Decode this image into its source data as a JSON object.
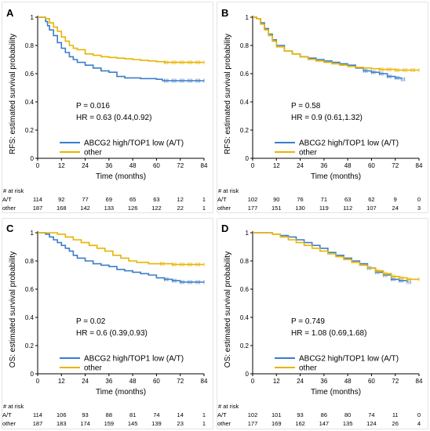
{
  "colors": {
    "blue": "#3a7dc9",
    "gold": "#e8b400",
    "axis": "#000000",
    "frame": "#e3e3e3"
  },
  "legend_labels": [
    "ABCG2 high/TOP1 low (A/T)",
    "other"
  ],
  "risk_header": "# at risk",
  "risk_row_labels": [
    "A/T",
    "other"
  ],
  "chart_data": [
    {
      "panel": "A",
      "type": "line",
      "xlabel": "Time (months)",
      "ylabel": "RFS: estimated survival probability",
      "xlim": [
        0,
        84
      ],
      "ylim": [
        0,
        1
      ],
      "xticks": [
        0,
        12,
        24,
        36,
        48,
        60,
        72,
        84
      ],
      "yticks": [
        0,
        0.2,
        0.4,
        0.6,
        0.8,
        1
      ],
      "ytick_labels": [
        "0",
        "0.2",
        "0.4",
        "0.6",
        "0.8",
        "1"
      ],
      "p_text": "P = 0.016",
      "hr_text": "HR = 0.63  (0.44,0.92)",
      "series": [
        {
          "name": "ABCG2 high/TOP1 low (A/T)",
          "color": "#3a7dc9",
          "x": [
            0,
            2,
            4,
            5,
            6,
            8,
            10,
            12,
            14,
            16,
            18,
            20,
            24,
            28,
            32,
            36,
            40,
            44,
            48,
            52,
            56,
            60,
            63,
            64,
            68,
            72,
            76,
            80,
            84
          ],
          "y": [
            1.0,
            1.0,
            0.97,
            0.94,
            0.91,
            0.87,
            0.82,
            0.78,
            0.75,
            0.72,
            0.7,
            0.68,
            0.66,
            0.64,
            0.62,
            0.61,
            0.58,
            0.57,
            0.57,
            0.565,
            0.565,
            0.56,
            0.55,
            0.55,
            0.55,
            0.55,
            0.55,
            0.55,
            0.55
          ]
        },
        {
          "name": "other",
          "color": "#e8b400",
          "x": [
            0,
            2,
            4,
            6,
            8,
            10,
            12,
            14,
            16,
            18,
            20,
            24,
            28,
            32,
            36,
            40,
            44,
            48,
            52,
            56,
            60,
            64,
            68,
            72,
            76,
            80,
            84
          ],
          "y": [
            1.0,
            1.0,
            0.99,
            0.96,
            0.93,
            0.9,
            0.86,
            0.83,
            0.8,
            0.78,
            0.77,
            0.74,
            0.73,
            0.72,
            0.715,
            0.71,
            0.705,
            0.7,
            0.695,
            0.69,
            0.685,
            0.68,
            0.68,
            0.68,
            0.68,
            0.68,
            0.68
          ]
        }
      ],
      "risk_times": [
        0,
        12,
        24,
        36,
        48,
        60,
        72,
        84
      ],
      "risk": [
        [
          "114",
          "92",
          "77",
          "69",
          "65",
          "63",
          "12",
          "1"
        ],
        [
          "187",
          "168",
          "142",
          "133",
          "126",
          "122",
          "22",
          "1"
        ]
      ]
    },
    {
      "panel": "B",
      "type": "line",
      "xlabel": "Time (months)",
      "ylabel": "RFS: estimated survival probability",
      "xlim": [
        0,
        84
      ],
      "ylim": [
        0,
        1
      ],
      "xticks": [
        0,
        12,
        24,
        36,
        48,
        60,
        72,
        84
      ],
      "yticks": [
        0,
        0.2,
        0.4,
        0.6,
        0.8,
        1
      ],
      "ytick_labels": [
        "0",
        "0.2",
        "0.4",
        "0.6",
        "0.8",
        "1"
      ],
      "p_text": "P = 0.58",
      "hr_text": "HR = 0.9  (0.61,1.32)",
      "series": [
        {
          "name": "ABCG2 high/TOP1 low (A/T)",
          "color": "#3a7dc9",
          "x": [
            0,
            2,
            4,
            6,
            8,
            10,
            12,
            16,
            20,
            24,
            28,
            32,
            36,
            40,
            44,
            48,
            52,
            56,
            60,
            64,
            68,
            72,
            75
          ],
          "y": [
            1.0,
            0.99,
            0.96,
            0.92,
            0.88,
            0.84,
            0.8,
            0.76,
            0.74,
            0.72,
            0.71,
            0.7,
            0.69,
            0.68,
            0.67,
            0.66,
            0.64,
            0.62,
            0.61,
            0.6,
            0.58,
            0.57,
            0.56
          ]
        },
        {
          "name": "other",
          "color": "#e8b400",
          "x": [
            0,
            2,
            4,
            6,
            8,
            10,
            12,
            16,
            20,
            24,
            28,
            32,
            36,
            40,
            44,
            48,
            52,
            56,
            60,
            64,
            68,
            72,
            76,
            80,
            84
          ],
          "y": [
            1.0,
            0.99,
            0.95,
            0.91,
            0.87,
            0.83,
            0.79,
            0.76,
            0.74,
            0.72,
            0.7,
            0.69,
            0.68,
            0.67,
            0.66,
            0.65,
            0.645,
            0.64,
            0.635,
            0.63,
            0.63,
            0.625,
            0.625,
            0.625,
            0.625
          ]
        }
      ],
      "risk_times": [
        0,
        12,
        24,
        36,
        48,
        60,
        72,
        84
      ],
      "risk": [
        [
          "102",
          "90",
          "76",
          "71",
          "63",
          "62",
          "9",
          "0"
        ],
        [
          "177",
          "151",
          "130",
          "119",
          "112",
          "107",
          "24",
          "3"
        ]
      ]
    },
    {
      "panel": "C",
      "type": "line",
      "xlabel": "Time (months)",
      "ylabel": "OS: estimated survival probability",
      "xlim": [
        0,
        84
      ],
      "ylim": [
        0,
        1
      ],
      "xticks": [
        0,
        12,
        24,
        36,
        48,
        60,
        72,
        84
      ],
      "yticks": [
        0,
        0.2,
        0.4,
        0.6,
        0.8,
        1
      ],
      "ytick_labels": [
        "0",
        "0.2",
        "0.4",
        "0.6",
        "0.8",
        "1"
      ],
      "p_text": "P = 0.02",
      "hr_text": "HR = 0.6  (0.39,0.93)",
      "series": [
        {
          "name": "ABCG2 high/TOP1 low (A/T)",
          "color": "#3a7dc9",
          "x": [
            0,
            4,
            6,
            8,
            10,
            12,
            14,
            16,
            18,
            20,
            24,
            28,
            32,
            36,
            40,
            44,
            48,
            52,
            56,
            60,
            64,
            68,
            72,
            76,
            80,
            84
          ],
          "y": [
            1.0,
            0.99,
            0.97,
            0.95,
            0.93,
            0.91,
            0.89,
            0.87,
            0.84,
            0.82,
            0.8,
            0.78,
            0.77,
            0.76,
            0.74,
            0.73,
            0.72,
            0.71,
            0.7,
            0.68,
            0.67,
            0.66,
            0.65,
            0.65,
            0.65,
            0.65
          ]
        },
        {
          "name": "other",
          "color": "#e8b400",
          "x": [
            0,
            6,
            10,
            14,
            18,
            22,
            26,
            30,
            34,
            38,
            42,
            46,
            50,
            56,
            62,
            68,
            72,
            76,
            80,
            84
          ],
          "y": [
            1.0,
            1.0,
            0.99,
            0.97,
            0.95,
            0.93,
            0.91,
            0.89,
            0.87,
            0.84,
            0.82,
            0.8,
            0.79,
            0.78,
            0.78,
            0.775,
            0.775,
            0.775,
            0.775,
            0.775
          ]
        }
      ],
      "risk_times": [
        0,
        12,
        24,
        36,
        48,
        60,
        72,
        84
      ],
      "risk": [
        [
          "114",
          "106",
          "93",
          "88",
          "81",
          "74",
          "14",
          "1"
        ],
        [
          "187",
          "183",
          "174",
          "159",
          "145",
          "139",
          "23",
          "1"
        ]
      ]
    },
    {
      "panel": "D",
      "type": "line",
      "xlabel": "Time (months)",
      "ylabel": "OS: estimated survival probability",
      "xlim": [
        0,
        84
      ],
      "ylim": [
        0,
        1
      ],
      "xticks": [
        0,
        12,
        24,
        36,
        48,
        60,
        72,
        84
      ],
      "yticks": [
        0,
        0.2,
        0.4,
        0.6,
        0.8,
        1
      ],
      "ytick_labels": [
        "0",
        "0.2",
        "0.4",
        "0.6",
        "0.8",
        "1"
      ],
      "p_text": "P = 0.749",
      "hr_text": "HR = 1.08  (0.69,1.68)",
      "series": [
        {
          "name": "ABCG2 high/TOP1 low (A/T)",
          "color": "#3a7dc9",
          "x": [
            0,
            6,
            10,
            14,
            18,
            22,
            26,
            30,
            34,
            38,
            42,
            46,
            50,
            54,
            58,
            62,
            66,
            70,
            74,
            78
          ],
          "y": [
            1.0,
            1.0,
            0.99,
            0.98,
            0.97,
            0.95,
            0.93,
            0.91,
            0.89,
            0.86,
            0.84,
            0.82,
            0.8,
            0.78,
            0.75,
            0.72,
            0.7,
            0.67,
            0.66,
            0.65
          ]
        },
        {
          "name": "other",
          "color": "#e8b400",
          "x": [
            0,
            6,
            10,
            14,
            18,
            22,
            26,
            30,
            34,
            38,
            42,
            46,
            50,
            54,
            58,
            62,
            66,
            70,
            74,
            78,
            84
          ],
          "y": [
            1.0,
            1.0,
            0.99,
            0.97,
            0.95,
            0.93,
            0.91,
            0.89,
            0.87,
            0.85,
            0.83,
            0.81,
            0.79,
            0.77,
            0.75,
            0.73,
            0.71,
            0.69,
            0.68,
            0.67,
            0.67
          ]
        }
      ],
      "risk_times": [
        0,
        12,
        24,
        36,
        48,
        60,
        72,
        84
      ],
      "risk": [
        [
          "102",
          "101",
          "93",
          "86",
          "80",
          "74",
          "11",
          "0"
        ],
        [
          "177",
          "169",
          "162",
          "147",
          "135",
          "124",
          "26",
          "4"
        ]
      ]
    }
  ]
}
